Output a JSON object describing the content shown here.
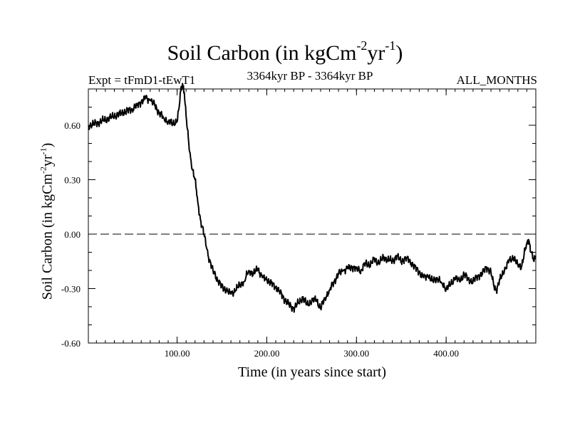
{
  "chart_data": {
    "type": "line",
    "title": {
      "base": "Soil Carbon (in kgCm",
      "sup1": "-2",
      "mid": "yr",
      "sup2": "-1",
      "end": ")"
    },
    "subtitle_left": "Expt = tFmD1-tEwT1",
    "subtitle_center": "3364kyr BP - 3364kyr BP",
    "subtitle_right": "ALL_MONTHS",
    "xlabel": "Time (in years since start)",
    "ylabel": {
      "base": "Soil Carbon (in kgCm",
      "sup1": "-2",
      "mid": "yr",
      "sup2": "-1",
      "end": ")"
    },
    "xlim": [
      1,
      500
    ],
    "ylim": [
      -0.6,
      0.8
    ],
    "xticks": [
      100,
      200,
      300,
      400
    ],
    "xtick_labels": [
      "100.00",
      "200.00",
      "300.00",
      "400.00"
    ],
    "yticks": [
      -0.6,
      -0.3,
      0.0,
      0.3,
      0.6
    ],
    "ytick_labels": [
      "-0.60",
      "-0.30",
      "0.00",
      "0.30",
      "0.60"
    ],
    "reference_line": {
      "y": 0.0,
      "style": "dashed"
    },
    "series": [
      {
        "name": "Soil Carbon",
        "x": [
          1,
          10,
          20,
          30,
          40,
          50,
          55,
          60,
          65,
          70,
          75,
          80,
          85,
          90,
          95,
          100,
          102,
          104,
          106,
          108,
          110,
          113,
          116,
          120,
          123,
          126,
          130,
          133,
          136,
          140,
          145,
          150,
          155,
          160,
          165,
          170,
          175,
          180,
          185,
          190,
          195,
          200,
          205,
          210,
          215,
          220,
          225,
          230,
          235,
          240,
          245,
          250,
          255,
          260,
          265,
          270,
          275,
          280,
          285,
          290,
          295,
          300,
          305,
          310,
          315,
          320,
          325,
          330,
          335,
          340,
          345,
          350,
          355,
          360,
          365,
          370,
          375,
          380,
          385,
          390,
          395,
          400,
          405,
          410,
          415,
          420,
          425,
          430,
          435,
          440,
          445,
          450,
          453,
          456,
          460,
          465,
          470,
          475,
          480,
          484,
          488,
          490,
          492,
          495,
          498,
          500
        ],
        "y": [
          0.6,
          0.61,
          0.63,
          0.65,
          0.67,
          0.69,
          0.71,
          0.73,
          0.75,
          0.74,
          0.71,
          0.67,
          0.64,
          0.62,
          0.61,
          0.62,
          0.69,
          0.79,
          0.83,
          0.78,
          0.65,
          0.5,
          0.38,
          0.3,
          0.18,
          0.08,
          0.0,
          -0.08,
          -0.14,
          -0.2,
          -0.25,
          -0.29,
          -0.31,
          -0.33,
          -0.31,
          -0.28,
          -0.26,
          -0.2,
          -0.22,
          -0.19,
          -0.24,
          -0.25,
          -0.27,
          -0.29,
          -0.32,
          -0.36,
          -0.39,
          -0.41,
          -0.38,
          -0.35,
          -0.39,
          -0.37,
          -0.36,
          -0.41,
          -0.35,
          -0.31,
          -0.26,
          -0.22,
          -0.2,
          -0.19,
          -0.18,
          -0.19,
          -0.2,
          -0.16,
          -0.17,
          -0.14,
          -0.16,
          -0.13,
          -0.14,
          -0.15,
          -0.12,
          -0.15,
          -0.13,
          -0.15,
          -0.18,
          -0.21,
          -0.24,
          -0.23,
          -0.26,
          -0.24,
          -0.27,
          -0.3,
          -0.28,
          -0.24,
          -0.26,
          -0.22,
          -0.25,
          -0.26,
          -0.23,
          -0.22,
          -0.18,
          -0.21,
          -0.28,
          -0.31,
          -0.25,
          -0.2,
          -0.15,
          -0.13,
          -0.17,
          -0.18,
          -0.09,
          -0.05,
          -0.03,
          -0.1,
          -0.15,
          -0.12
        ]
      }
    ]
  }
}
